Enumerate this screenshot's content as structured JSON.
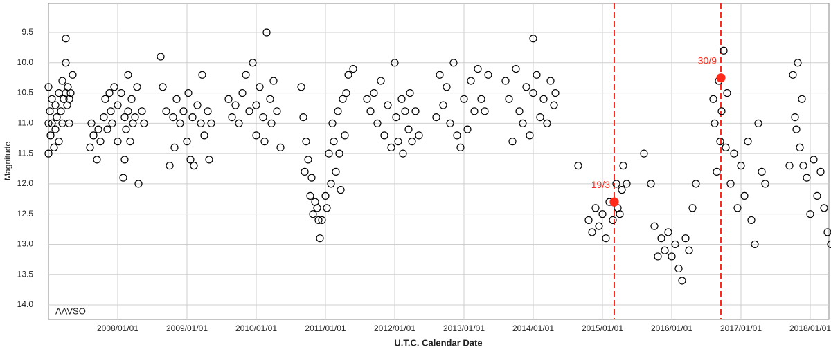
{
  "chart_data": {
    "type": "scatter",
    "source_label": "AAVSO",
    "x_label": "U.T.C. Calendar Date",
    "y_label": "Magnitude",
    "xlim": [
      2007,
      2018.27
    ],
    "ylim": [
      14.24,
      9.02
    ],
    "grid": true,
    "xticks": [
      {
        "value": 2008,
        "label": "2008/01/01"
      },
      {
        "value": 2009,
        "label": "2009/01/01"
      },
      {
        "value": 2010,
        "label": "2010/01/01"
      },
      {
        "value": 2011,
        "label": "2011/01/01"
      },
      {
        "value": 2012,
        "label": "2012/01/01"
      },
      {
        "value": 2013,
        "label": "2013/01/01"
      },
      {
        "value": 2014,
        "label": "2014/01/01"
      },
      {
        "value": 2015,
        "label": "2015/01/01"
      },
      {
        "value": 2016,
        "label": "2016/01/01"
      },
      {
        "value": 2017,
        "label": "2017/01/01"
      },
      {
        "value": 2018,
        "label": "2018/01/01"
      }
    ],
    "yticks": [
      9.5,
      {
        "value": 10.0,
        "label": "10.0"
      },
      10.5,
      {
        "value": 11.0,
        "label": "11.0"
      },
      11.5,
      {
        "value": 12.0,
        "label": "12.0"
      },
      12.5,
      {
        "value": 13.0,
        "label": "13.0"
      },
      13.5,
      {
        "value": 14.0,
        "label": "14.0"
      }
    ],
    "series": [
      {
        "color": "#000000",
        "filled": false,
        "x": [
          2007.0,
          2007.0,
          2007.0,
          2007.02,
          2007.03,
          2007.05,
          2007.05,
          2007.08,
          2007.1,
          2007.1,
          2007.12,
          2007.15,
          2007.15,
          2007.18,
          2007.2,
          2007.2,
          2007.22,
          2007.25,
          2007.25,
          2007.25,
          2007.27,
          2007.28,
          2007.3,
          2007.3,
          2007.32,
          2007.35
        ],
        "values": [
          10.4,
          11.0,
          11.5,
          10.8,
          11.2,
          11.0,
          10.6,
          11.4,
          10.7,
          11.1,
          10.9,
          11.3,
          10.5,
          10.8,
          10.3,
          11.0,
          10.6,
          9.6,
          10.0,
          10.5,
          10.7,
          10.4,
          10.6,
          11.0,
          10.5,
          10.2
        ]
      },
      {
        "color": "#000000",
        "filled": false,
        "x": [
          2007.6,
          2007.62,
          2007.65,
          2007.7,
          2007.72,
          2007.75,
          2007.8,
          2007.82,
          2007.85,
          2007.88,
          2007.9,
          2007.92,
          2007.95,
          2008.0,
          2008.0,
          2008.05,
          2008.08,
          2008.1,
          2008.1,
          2008.12,
          2008.15,
          2008.15,
          2008.18,
          2008.2,
          2008.22,
          2008.25,
          2008.28,
          2008.3,
          2008.35,
          2008.38
        ],
        "values": [
          11.4,
          11.0,
          11.2,
          11.6,
          11.1,
          11.3,
          10.9,
          10.6,
          11.1,
          10.5,
          10.8,
          11.0,
          10.4,
          10.7,
          11.3,
          10.5,
          11.9,
          10.9,
          11.6,
          11.1,
          10.2,
          10.8,
          11.3,
          10.6,
          11.0,
          10.9,
          10.4,
          12.0,
          10.8,
          11.0
        ]
      },
      {
        "color": "#000000",
        "filled": false,
        "x": [
          2008.62,
          2008.65,
          2008.7,
          2008.75,
          2008.8,
          2008.82,
          2008.85,
          2008.9,
          2008.95,
          2009.0,
          2009.02,
          2009.05,
          2009.08,
          2009.1,
          2009.15,
          2009.2,
          2009.22,
          2009.25,
          2009.3,
          2009.32,
          2009.35
        ],
        "values": [
          9.9,
          10.4,
          10.8,
          11.7,
          10.9,
          11.4,
          10.6,
          11.0,
          10.8,
          11.3,
          10.5,
          11.6,
          10.9,
          11.7,
          10.7,
          11.0,
          10.2,
          11.2,
          10.8,
          11.6,
          11.0
        ]
      },
      {
        "color": "#000000",
        "filled": false,
        "x": [
          2009.6,
          2009.65,
          2009.7,
          2009.75,
          2009.8,
          2009.85,
          2009.9,
          2009.95,
          2010.0,
          2010.0,
          2010.05,
          2010.1,
          2010.12,
          2010.15,
          2010.2,
          2010.22,
          2010.25,
          2010.3,
          2010.35
        ],
        "values": [
          10.6,
          10.9,
          10.7,
          11.0,
          10.5,
          10.2,
          10.8,
          10.0,
          10.7,
          11.2,
          10.4,
          10.9,
          11.3,
          9.5,
          10.6,
          11.0,
          10.3,
          10.8,
          11.4
        ]
      },
      {
        "color": "#000000",
        "filled": false,
        "x": [
          2010.65,
          2010.68,
          2010.7,
          2010.72,
          2010.75,
          2010.78,
          2010.8,
          2010.82,
          2010.85,
          2010.88,
          2010.9,
          2010.92,
          2010.95,
          2011.0,
          2011.02,
          2011.05,
          2011.08,
          2011.1,
          2011.12,
          2011.15,
          2011.18,
          2011.2,
          2011.22,
          2011.25,
          2011.28,
          2011.3,
          2011.33
        ],
        "values": [
          10.4,
          10.9,
          11.8,
          11.3,
          11.6,
          12.2,
          11.9,
          12.5,
          12.3,
          12.4,
          12.6,
          12.9,
          12.6,
          12.2,
          12.4,
          11.5,
          12.0,
          11.0,
          11.3,
          11.8,
          10.8,
          11.5,
          12.1,
          10.6,
          11.2,
          10.5,
          10.2
        ]
      },
      {
        "color": "#000000",
        "filled": false,
        "x": [
          2011.4,
          2011.6,
          2011.65,
          2011.7,
          2011.75,
          2011.8,
          2011.85,
          2011.9,
          2011.95,
          2012.0,
          2012.02,
          2012.05,
          2012.1,
          2012.12,
          2012.15,
          2012.2,
          2012.22,
          2012.25,
          2012.3,
          2012.35
        ],
        "values": [
          10.1,
          10.6,
          10.8,
          10.5,
          11.0,
          10.3,
          11.2,
          10.7,
          11.4,
          10.0,
          10.9,
          11.3,
          10.6,
          11.5,
          10.8,
          11.1,
          10.5,
          11.3,
          10.8,
          11.2
        ]
      },
      {
        "color": "#000000",
        "filled": false,
        "x": [
          2012.6,
          2012.65,
          2012.7,
          2012.75,
          2012.8,
          2012.85,
          2012.9,
          2012.95,
          2013.0,
          2013.05,
          2013.1,
          2013.15,
          2013.2,
          2013.25,
          2013.3,
          2013.35
        ],
        "values": [
          10.9,
          10.2,
          10.7,
          10.4,
          11.0,
          10.0,
          11.2,
          11.4,
          10.6,
          11.1,
          10.3,
          10.8,
          10.1,
          10.6,
          10.8,
          10.2
        ]
      },
      {
        "color": "#000000",
        "filled": false,
        "x": [
          2013.6,
          2013.65,
          2013.7,
          2013.75,
          2013.8,
          2013.85,
          2013.9,
          2013.95,
          2014.0,
          2014.0,
          2014.05,
          2014.1,
          2014.15,
          2014.2,
          2014.25,
          2014.3,
          2014.32
        ],
        "values": [
          10.3,
          10.6,
          11.3,
          10.1,
          10.8,
          11.0,
          10.4,
          11.2,
          9.6,
          10.5,
          10.2,
          10.9,
          10.6,
          11.0,
          10.3,
          10.7,
          10.5
        ]
      },
      {
        "color": "#000000",
        "filled": false,
        "x": [
          2014.65,
          2014.8,
          2014.85,
          2014.9,
          2014.95,
          2015.0,
          2015.05,
          2015.1,
          2015.15,
          2015.2,
          2015.22,
          2015.25,
          2015.28,
          2015.3,
          2015.35
        ],
        "values": [
          11.7,
          12.6,
          12.8,
          12.4,
          12.7,
          12.5,
          12.9,
          12.3,
          12.6,
          12.0,
          12.4,
          12.5,
          12.1,
          11.7,
          12.0
        ]
      },
      {
        "color": "#000000",
        "filled": false,
        "x": [
          2015.6,
          2015.7,
          2015.75,
          2015.8,
          2015.85,
          2015.9,
          2015.95,
          2016.0,
          2016.05,
          2016.1,
          2016.15,
          2016.2,
          2016.25,
          2016.3,
          2016.35
        ],
        "values": [
          11.5,
          12.0,
          12.7,
          13.2,
          12.9,
          13.1,
          12.8,
          13.2,
          13.0,
          13.4,
          13.6,
          12.9,
          13.1,
          12.4,
          12.0
        ]
      },
      {
        "color": "#000000",
        "filled": false,
        "x": [
          2016.6,
          2016.62,
          2016.65,
          2016.68,
          2016.7,
          2016.72,
          2016.75,
          2016.78,
          2016.8,
          2016.85,
          2016.9,
          2016.95,
          2017.0,
          2017.05,
          2017.1,
          2017.15,
          2017.2,
          2017.25,
          2017.3,
          2017.35
        ],
        "values": [
          10.6,
          11.0,
          11.8,
          10.3,
          11.3,
          10.8,
          9.8,
          11.4,
          10.5,
          12.0,
          11.5,
          12.4,
          11.7,
          12.2,
          11.3,
          12.6,
          13.0,
          11.0,
          11.8,
          12.0
        ]
      },
      {
        "color": "#000000",
        "filled": false,
        "x": [
          2017.7,
          2017.75,
          2017.78,
          2017.8,
          2017.82,
          2017.85,
          2017.88,
          2017.9,
          2017.95,
          2018.0,
          2018.05,
          2018.1,
          2018.15,
          2018.2,
          2018.25,
          2018.3
        ],
        "values": [
          11.7,
          10.2,
          10.9,
          11.1,
          10.0,
          11.4,
          10.6,
          11.7,
          11.9,
          12.5,
          11.6,
          12.2,
          11.8,
          12.4,
          12.8,
          13.0
        ]
      },
      {
        "color": "#ff2a1a",
        "filled": true,
        "x": [
          2015.17,
          2016.71
        ],
        "values": [
          12.3,
          10.25
        ]
      }
    ],
    "vlines": [
      {
        "value": 2015.17,
        "label": "19/3",
        "color": "#ff2a1a"
      },
      {
        "value": 2016.71,
        "label": "30/9",
        "color": "#ff2a1a"
      }
    ]
  }
}
